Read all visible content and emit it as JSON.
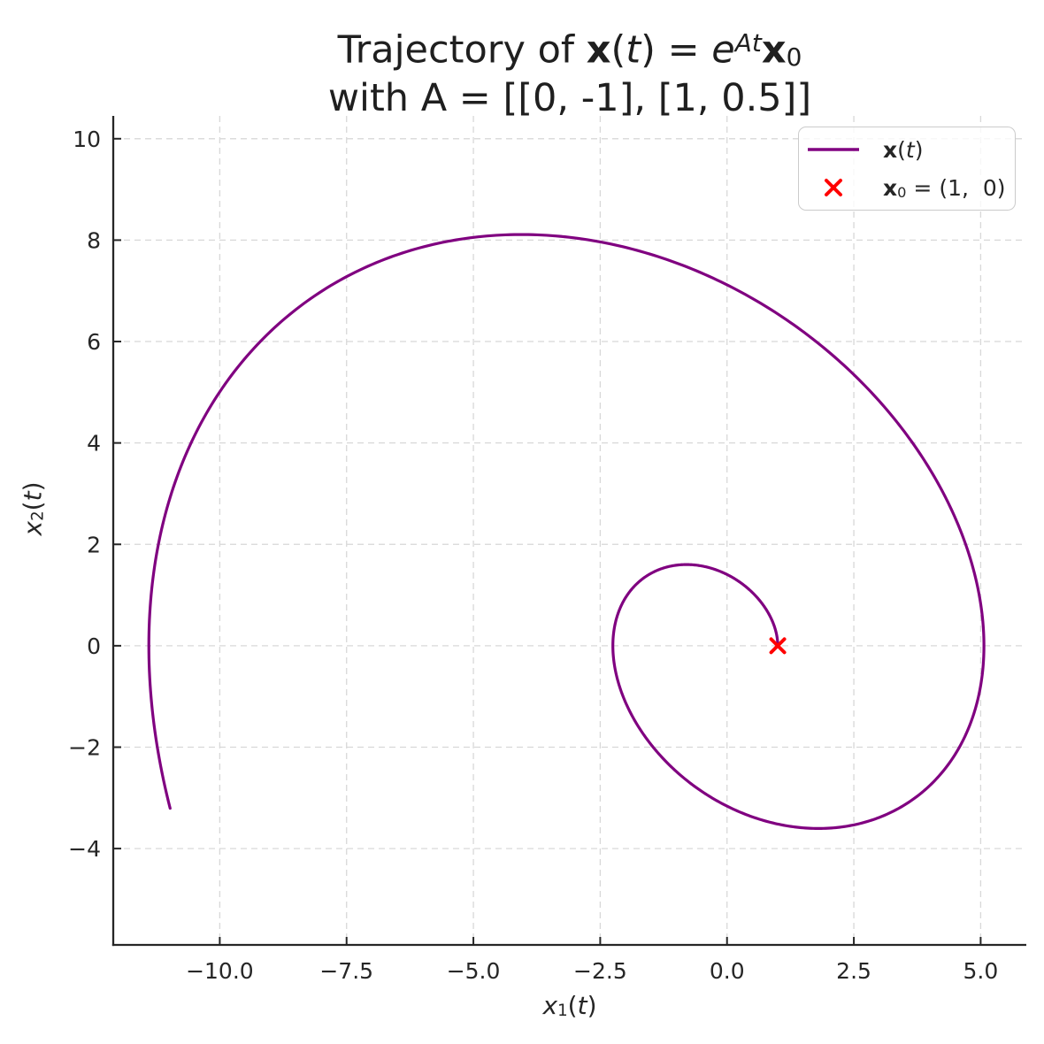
{
  "text": {
    "title": {
      "line1_parts": [
        {
          "t": "Trajectory of "
        },
        {
          "t": "x",
          "s": "b"
        },
        {
          "t": "("
        },
        {
          "t": "t",
          "s": "i"
        },
        {
          "t": ") = "
        },
        {
          "t": "e",
          "s": "i"
        },
        {
          "t": "At",
          "s": "supi"
        },
        {
          "t": "x",
          "s": "b"
        },
        {
          "t": "0",
          "s": "sub"
        }
      ],
      "line2": "with A = [[0, -1], [1, 0.5]]"
    },
    "xlabel_parts": [
      {
        "t": "x",
        "s": "i"
      },
      {
        "t": "1",
        "s": "sub"
      },
      {
        "t": "("
      },
      {
        "t": "t",
        "s": "i"
      },
      {
        "t": ")"
      }
    ],
    "ylabel_parts": [
      {
        "t": "x",
        "s": "i"
      },
      {
        "t": "2",
        "s": "sub"
      },
      {
        "t": "("
      },
      {
        "t": "t",
        "s": "i"
      },
      {
        "t": ")"
      }
    ]
  },
  "legend": {
    "position": "upper right",
    "entries": [
      {
        "id": "trajectory",
        "marker": "line",
        "color": "#800080",
        "label_parts": [
          {
            "t": "x",
            "s": "b"
          },
          {
            "t": "("
          },
          {
            "t": "t",
            "s": "i"
          },
          {
            "t": ")"
          }
        ]
      },
      {
        "id": "initial-point",
        "marker": "x",
        "color": "#ff0000",
        "label_parts": [
          {
            "t": "x",
            "s": "b"
          },
          {
            "t": "0",
            "s": "sub"
          },
          {
            "t": " = (1,  0)"
          }
        ]
      }
    ]
  },
  "chart_data": {
    "type": "line",
    "title": "Trajectory of x(t) = e^{At} x_0  with A = [[0, -1], [1, 0.5]]",
    "xlabel": "x_1(t)",
    "ylabel": "x_2(t)",
    "xlim": [
      -12.1,
      5.9
    ],
    "ylim": [
      -5.9,
      10.45
    ],
    "x_ticks": {
      "values": [
        -10,
        -7.5,
        -5,
        -2.5,
        0,
        2.5,
        5
      ],
      "labels": [
        "−10.0",
        "−7.5",
        "−5.0",
        "−2.5",
        "0.0",
        "2.5",
        "5.0"
      ]
    },
    "y_ticks": {
      "values": [
        -4,
        -2,
        0,
        2,
        4,
        6,
        8,
        10
      ],
      "labels": [
        "−4",
        "−2",
        "0",
        "2",
        "4",
        "6",
        "8",
        "10"
      ]
    },
    "grid": {
      "visible": true,
      "linestyle": "dashed",
      "color": "#d8d8d8",
      "dash": "7 5",
      "line_width": 1.3
    },
    "spines": {
      "visible": [
        "left",
        "bottom"
      ],
      "color": "#262626",
      "line_width": 2.3
    },
    "ticks": {
      "direction": "in",
      "length": 9,
      "width": 2,
      "color": "#262626",
      "label_size": 25,
      "label_color": "#262626"
    },
    "series": [
      {
        "name": "x(t)",
        "type": "line",
        "color": "#800080",
        "line_width": 3.2,
        "generator": {
          "kind": "linear-ode-matrix-exponential",
          "description": "x(t) = exp(A t) x0, spiral source (eigenvalues 0.25 +/- 0.968i)",
          "A": [
            [
              0,
              -1
            ],
            [
              1,
              0.5
            ]
          ],
          "x0": [
            1,
            0
          ],
          "t_min": 0,
          "t_max": 10,
          "samples": 900
        },
        "key_points": {
          "start": [
            1.0,
            0.0
          ],
          "inner_loop_top": [
            -0.8,
            1.6
          ],
          "inner_loop_left": [
            -2.25,
            0.0
          ],
          "inner_loop_bottom": [
            1.8,
            -3.6
          ],
          "right_extreme": [
            5.06,
            0.0
          ],
          "outer_top": [
            -4.06,
            8.11
          ],
          "left_extreme": [
            -11.39,
            0.0
          ],
          "end": [
            -10.98,
            -3.21
          ]
        }
      },
      {
        "name": "x_0 = (1, 0)",
        "type": "scatter",
        "marker": "x",
        "color": "#ff0000",
        "points": [
          [
            1,
            0
          ]
        ],
        "marker_size": 17,
        "marker_stroke_width": 4
      }
    ]
  }
}
